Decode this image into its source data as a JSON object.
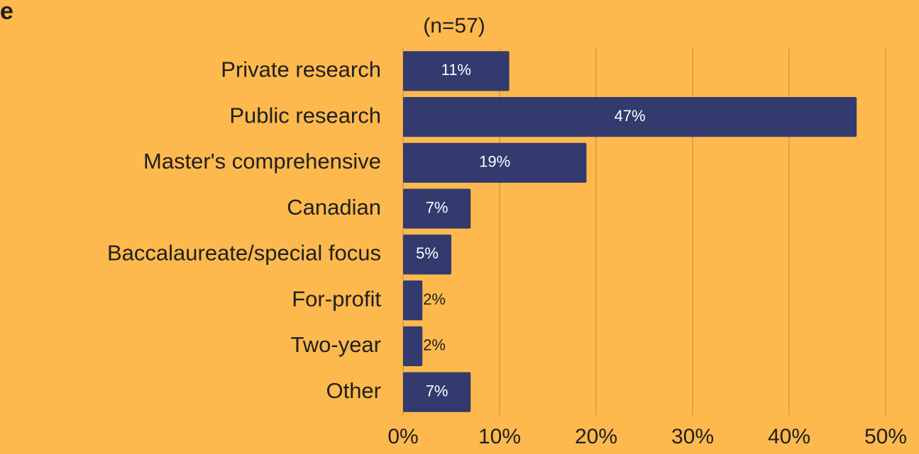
{
  "chart_data": {
    "type": "bar",
    "orientation": "horizontal",
    "corner_label": "e",
    "subtitle": "(n=57)",
    "categories": [
      "Private research",
      "Public research",
      "Master's comprehensive",
      "Canadian",
      "Baccalaureate/special focus",
      "For-profit",
      "Two-year",
      "Other"
    ],
    "values": [
      11,
      47,
      19,
      7,
      5,
      2,
      2,
      7
    ],
    "value_labels": [
      "11%",
      "47%",
      "19%",
      "7%",
      "5%",
      "2%",
      "2%",
      "7%"
    ],
    "color": "#323a6e",
    "xlim": [
      0,
      50
    ],
    "xticks": [
      {
        "value": 0,
        "label": "0%"
      },
      {
        "value": 10,
        "label": "10%"
      },
      {
        "value": 20,
        "label": "20%"
      },
      {
        "value": 30,
        "label": "30%"
      },
      {
        "value": 40,
        "label": "40%"
      },
      {
        "value": 50,
        "label": "50%"
      }
    ],
    "grid": true
  }
}
